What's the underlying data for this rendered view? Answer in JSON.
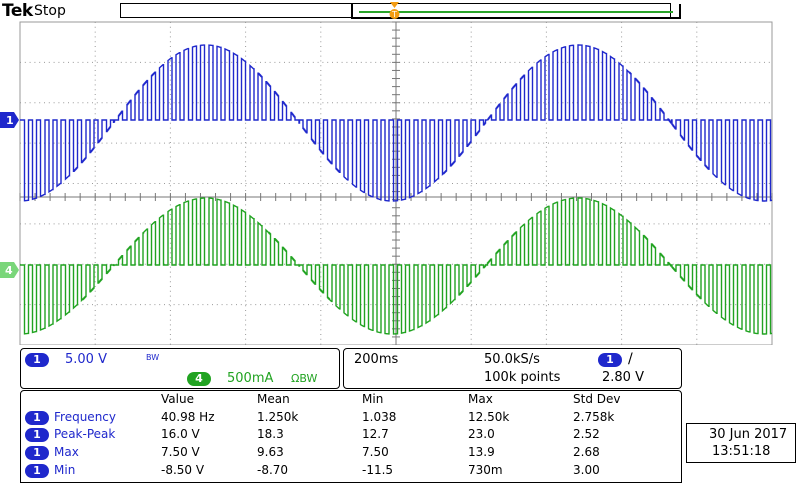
{
  "header": {
    "brand": "Tek",
    "state": "Stop"
  },
  "markers": {
    "ch1": "1",
    "ch4": "4",
    "trigger": "T"
  },
  "colors": {
    "ch1": "#1f28cc",
    "ch4": "#21a321",
    "grid": "#9a9a9a",
    "record_window": "#2aa52a",
    "trigger": "#f39c12"
  },
  "channels": {
    "ch1": {
      "num": "1",
      "scale": "5.00 V",
      "bw": "BW"
    },
    "ch4": {
      "num": "4",
      "scale": "500mA",
      "coupling": "ΩBW"
    }
  },
  "horizontal": {
    "timebase": "200ms",
    "sample_rate": "50.0kS/s",
    "record": "100k points"
  },
  "trigger": {
    "source": "1",
    "slope": "/",
    "level": "2.80 V"
  },
  "measurements": {
    "headers": [
      "Value",
      "Mean",
      "Min",
      "Max",
      "Std Dev"
    ],
    "rows": [
      {
        "ch": "1",
        "name": "Frequency",
        "value": "40.98 Hz",
        "mean": "1.250k",
        "min": "1.038",
        "max": "12.50k",
        "std": "2.758k"
      },
      {
        "ch": "1",
        "name": "Peak-Peak",
        "value": "16.0 V",
        "mean": "18.3",
        "min": "12.7",
        "max": "23.0",
        "std": "2.52"
      },
      {
        "ch": "1",
        "name": "Max",
        "value": "7.50 V",
        "mean": "9.63",
        "min": "7.50",
        "max": "13.9",
        "std": "2.68"
      },
      {
        "ch": "1",
        "name": "Min",
        "value": "-8.50 V",
        "mean": "-8.70",
        "min": "-11.5",
        "max": "730m",
        "std": "3.00"
      }
    ]
  },
  "datetime": {
    "date": "30 Jun  2017",
    "time": "13:51:18"
  }
}
